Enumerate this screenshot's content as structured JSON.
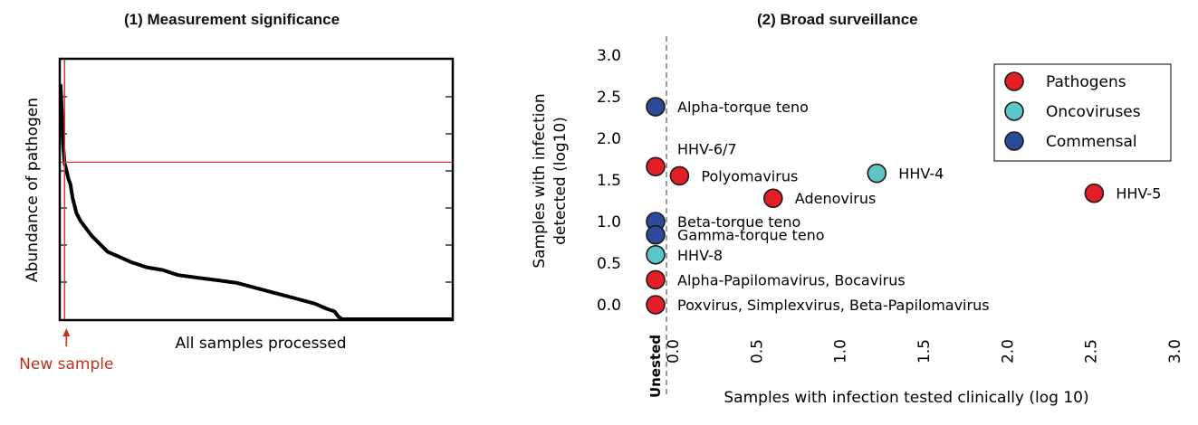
{
  "panels": {
    "left_title": "(1) Measurement significance",
    "right_title": "(2) Broad surveillance"
  },
  "colors": {
    "pathogen": "#e31e26",
    "oncovirus": "#5bc5c8",
    "commensal": "#2b4a9a",
    "threshold": "#d43a2a",
    "annotation": "#c0301f"
  },
  "chart_data": [
    {
      "type": "line",
      "title": "(1) Measurement significance",
      "xlabel": "All samples processed",
      "ylabel": "Abundance of pathogen",
      "annotation": "New sample",
      "threshold": 0.605,
      "new_sample_x": 0.01,
      "grid": false,
      "x": [
        0,
        0.003,
        0.006,
        0.01,
        0.014,
        0.02,
        0.025,
        0.03,
        0.04,
        0.05,
        0.06,
        0.08,
        0.1,
        0.12,
        0.15,
        0.18,
        0.22,
        0.26,
        0.3,
        0.35,
        0.4,
        0.45,
        0.5,
        0.55,
        0.6,
        0.65,
        0.68,
        0.7,
        0.71,
        0.72,
        1.0
      ],
      "y": [
        0.9,
        0.8,
        0.68,
        0.6,
        0.58,
        0.54,
        0.52,
        0.47,
        0.41,
        0.38,
        0.36,
        0.32,
        0.29,
        0.26,
        0.24,
        0.22,
        0.2,
        0.19,
        0.17,
        0.16,
        0.15,
        0.14,
        0.12,
        0.1,
        0.08,
        0.06,
        0.04,
        0.03,
        0.01,
        0.0,
        0.0
      ]
    },
    {
      "type": "scatter",
      "title": "(2) Broad surveillance",
      "xlabel": "Samples with infection tested clinically (log 10)",
      "ylabel": [
        "Samples with infection",
        "detected  (log10)"
      ],
      "xlim": [
        0.0,
        3.0
      ],
      "ylim": [
        0.0,
        3.0
      ],
      "xticks": [
        "0.0",
        "0.5",
        "1.0",
        "1.5",
        "2.0",
        "2.5",
        "3.0"
      ],
      "yticks": [
        "0.0",
        "0.5",
        "1.0",
        "1.5",
        "2.0",
        "2.5",
        "3.0"
      ],
      "untested_label": "Unested",
      "legend_position": "top-right",
      "legend": [
        {
          "label": "Pathogens",
          "group": "pathogen"
        },
        {
          "label": "Oncoviruses",
          "group": "oncovirus"
        },
        {
          "label": "Commensal",
          "group": "commensal"
        }
      ],
      "points": [
        {
          "label": "Alpha-torque teno",
          "x": "untested",
          "y": 2.38,
          "group": "commensal"
        },
        {
          "label": "HHV-6/7",
          "x": "untested",
          "y": 1.66,
          "group": "pathogen",
          "label_pos": "above"
        },
        {
          "label": "Polyomavirus",
          "x": 0.04,
          "y": 1.55,
          "group": "pathogen"
        },
        {
          "label": "HHV-4",
          "x": 1.22,
          "y": 1.58,
          "group": "oncovirus"
        },
        {
          "label": "Adenovirus",
          "x": 0.6,
          "y": 1.28,
          "group": "pathogen"
        },
        {
          "label": "HHV-5",
          "x": 2.52,
          "y": 1.34,
          "group": "pathogen"
        },
        {
          "label": "Beta-torque teno",
          "x": "untested",
          "y": 1.0,
          "group": "commensal"
        },
        {
          "label": "Gamma-torque teno",
          "x": "untested",
          "y": 0.84,
          "group": "commensal"
        },
        {
          "label": "HHV-8",
          "x": "untested",
          "y": 0.6,
          "group": "oncovirus"
        },
        {
          "label": "Alpha-Papilomavirus, Bocavirus",
          "x": "untested",
          "y": 0.3,
          "group": "pathogen"
        },
        {
          "label": "Poxvirus, Simplexvirus, Beta-Papilomavirus",
          "x": "untested",
          "y": 0.0,
          "group": "pathogen"
        }
      ]
    }
  ]
}
